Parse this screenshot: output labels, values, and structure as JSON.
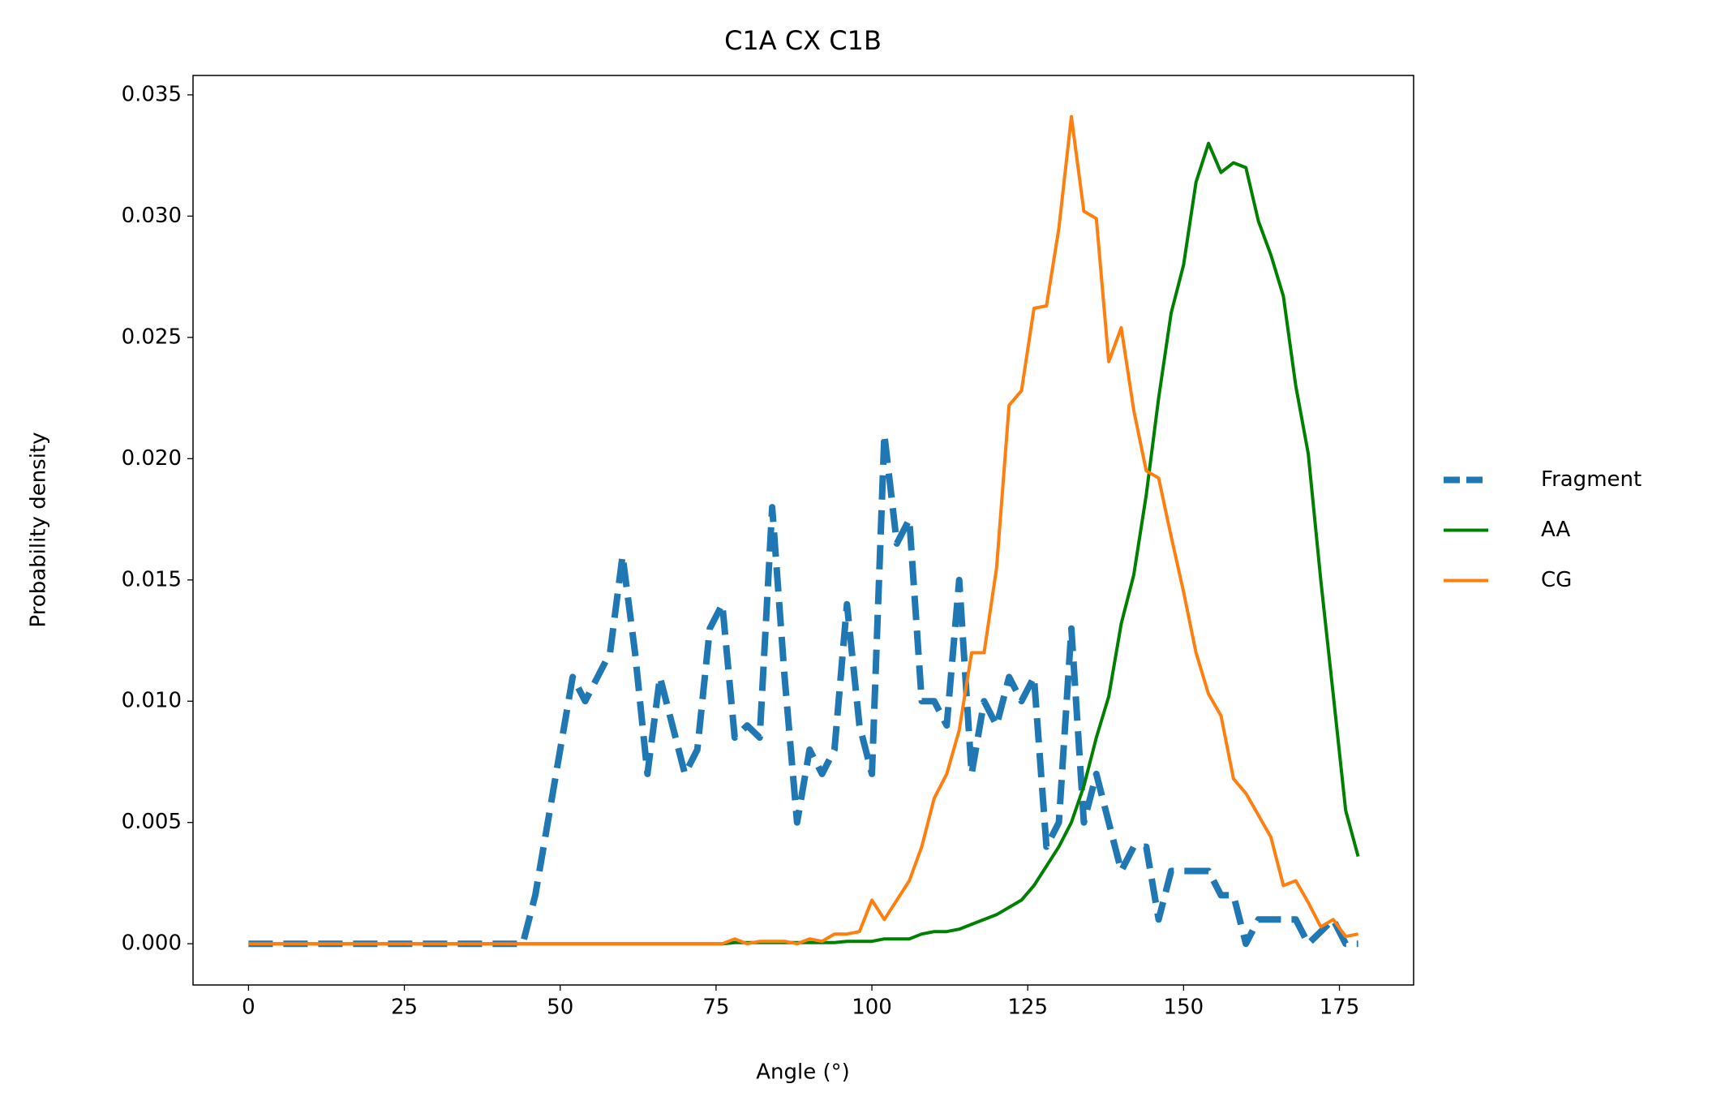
{
  "chart_data": {
    "type": "line",
    "title": "C1A CX C1B",
    "x_label": "Angle (°)",
    "y_label": "Probability density",
    "x": [
      0,
      2,
      4,
      6,
      8,
      10,
      12,
      14,
      16,
      18,
      20,
      22,
      24,
      26,
      28,
      30,
      32,
      34,
      36,
      38,
      40,
      42,
      44,
      46,
      48,
      50,
      52,
      54,
      56,
      58,
      60,
      62,
      64,
      66,
      68,
      70,
      72,
      74,
      76,
      78,
      80,
      82,
      84,
      86,
      88,
      90,
      92,
      94,
      96,
      98,
      100,
      102,
      104,
      106,
      108,
      110,
      112,
      114,
      116,
      118,
      120,
      122,
      124,
      126,
      128,
      130,
      132,
      134,
      136,
      138,
      140,
      142,
      144,
      146,
      148,
      150,
      152,
      154,
      156,
      158,
      160,
      162,
      164,
      166,
      168,
      170,
      172,
      174,
      176,
      178
    ],
    "series": [
      {
        "name": "Fragment",
        "color": "#1f77b4",
        "linestyle": "dashed",
        "values": [
          0,
          0,
          0,
          0,
          0,
          0,
          0,
          0,
          0,
          0,
          0,
          0,
          0,
          0,
          0,
          0,
          0,
          0,
          0,
          0,
          0,
          0,
          0,
          0.002,
          0.005,
          0.008,
          0.011,
          0.01,
          0.011,
          0.012,
          0.016,
          0.012,
          0.007,
          0.011,
          0.009,
          0.007,
          0.008,
          0.013,
          0.014,
          0.0085,
          0.009,
          0.0085,
          0.018,
          0.011,
          0.005,
          0.008,
          0.007,
          0.008,
          0.014,
          0.009,
          0.007,
          0.021,
          0.0165,
          0.0175,
          0.01,
          0.01,
          0.009,
          0.015,
          0.007,
          0.01,
          0.009,
          0.011,
          0.01,
          0.011,
          0.004,
          0.005,
          0.013,
          0.005,
          0.007,
          0.005,
          0.003,
          0.004,
          0.004,
          0.001,
          0.003,
          0.003,
          0.003,
          0.003,
          0.002,
          0.002,
          0.0,
          0.001,
          0.001,
          0.001,
          0.001,
          0.0,
          0.0005,
          0.001,
          0.0,
          0.0
        ]
      },
      {
        "name": "AA",
        "color": "#008000",
        "linestyle": "solid",
        "values": [
          0,
          0,
          0,
          0,
          0,
          0,
          0,
          0,
          0,
          0,
          0,
          0,
          0,
          0,
          0,
          0,
          0,
          0,
          0,
          0,
          0,
          0,
          0,
          0,
          0,
          0,
          0,
          0,
          0,
          0,
          0,
          0,
          0,
          0,
          0,
          0,
          0,
          0,
          0,
          5e-05,
          5e-05,
          5e-05,
          5e-05,
          5e-05,
          5e-05,
          5e-05,
          5e-05,
          5e-05,
          0.0001,
          0.0001,
          0.0001,
          0.0002,
          0.0002,
          0.0002,
          0.0004,
          0.0005,
          0.0005,
          0.0006,
          0.0008,
          0.001,
          0.0012,
          0.0015,
          0.0018,
          0.0024,
          0.0032,
          0.004,
          0.005,
          0.0065,
          0.0085,
          0.0102,
          0.0132,
          0.0152,
          0.0185,
          0.0225,
          0.026,
          0.028,
          0.0314,
          0.033,
          0.0318,
          0.0322,
          0.032,
          0.0298,
          0.0284,
          0.0267,
          0.023,
          0.0202,
          0.015,
          0.0103,
          0.0055,
          0.0036
        ]
      },
      {
        "name": "CG",
        "color": "#ff7f0e",
        "linestyle": "solid",
        "values": [
          0,
          0,
          0,
          0,
          0,
          0,
          0,
          0,
          0,
          0,
          0,
          0,
          0,
          0,
          0,
          0,
          0,
          0,
          0,
          0,
          0,
          0,
          0,
          0,
          0,
          0,
          0,
          0,
          0,
          0,
          0,
          0,
          0,
          0,
          0,
          0,
          0,
          0,
          0,
          0.0002,
          0,
          0.0001,
          0.0001,
          0.0001,
          0,
          0.0002,
          0.0001,
          0.0004,
          0.0004,
          0.0005,
          0.0018,
          0.001,
          0.0018,
          0.0026,
          0.004,
          0.006,
          0.007,
          0.0088,
          0.012,
          0.012,
          0.0155,
          0.0222,
          0.0228,
          0.0262,
          0.0263,
          0.0295,
          0.0341,
          0.0302,
          0.0299,
          0.024,
          0.0254,
          0.022,
          0.0195,
          0.0192,
          0.0168,
          0.0145,
          0.012,
          0.0103,
          0.0094,
          0.0068,
          0.0062,
          0.0053,
          0.0044,
          0.0024,
          0.0026,
          0.0017,
          0.0007,
          0.001,
          0.0003,
          0.0004
        ]
      }
    ],
    "xlim": [
      -8.9,
      186.9
    ],
    "ylim": [
      -0.0017,
      0.0358
    ],
    "xticks": [
      0,
      25,
      50,
      75,
      100,
      125,
      150,
      175
    ],
    "yticks": [
      {
        "value": 0,
        "label": "0.000"
      },
      0.005,
      {
        "value": 0.01,
        "label": "0.010"
      },
      0.015,
      {
        "value": 0.02,
        "label": "0.020"
      },
      0.025,
      {
        "value": 0.03,
        "label": "0.030"
      },
      0.035
    ],
    "grid": false,
    "legend": "center-left-outside"
  }
}
